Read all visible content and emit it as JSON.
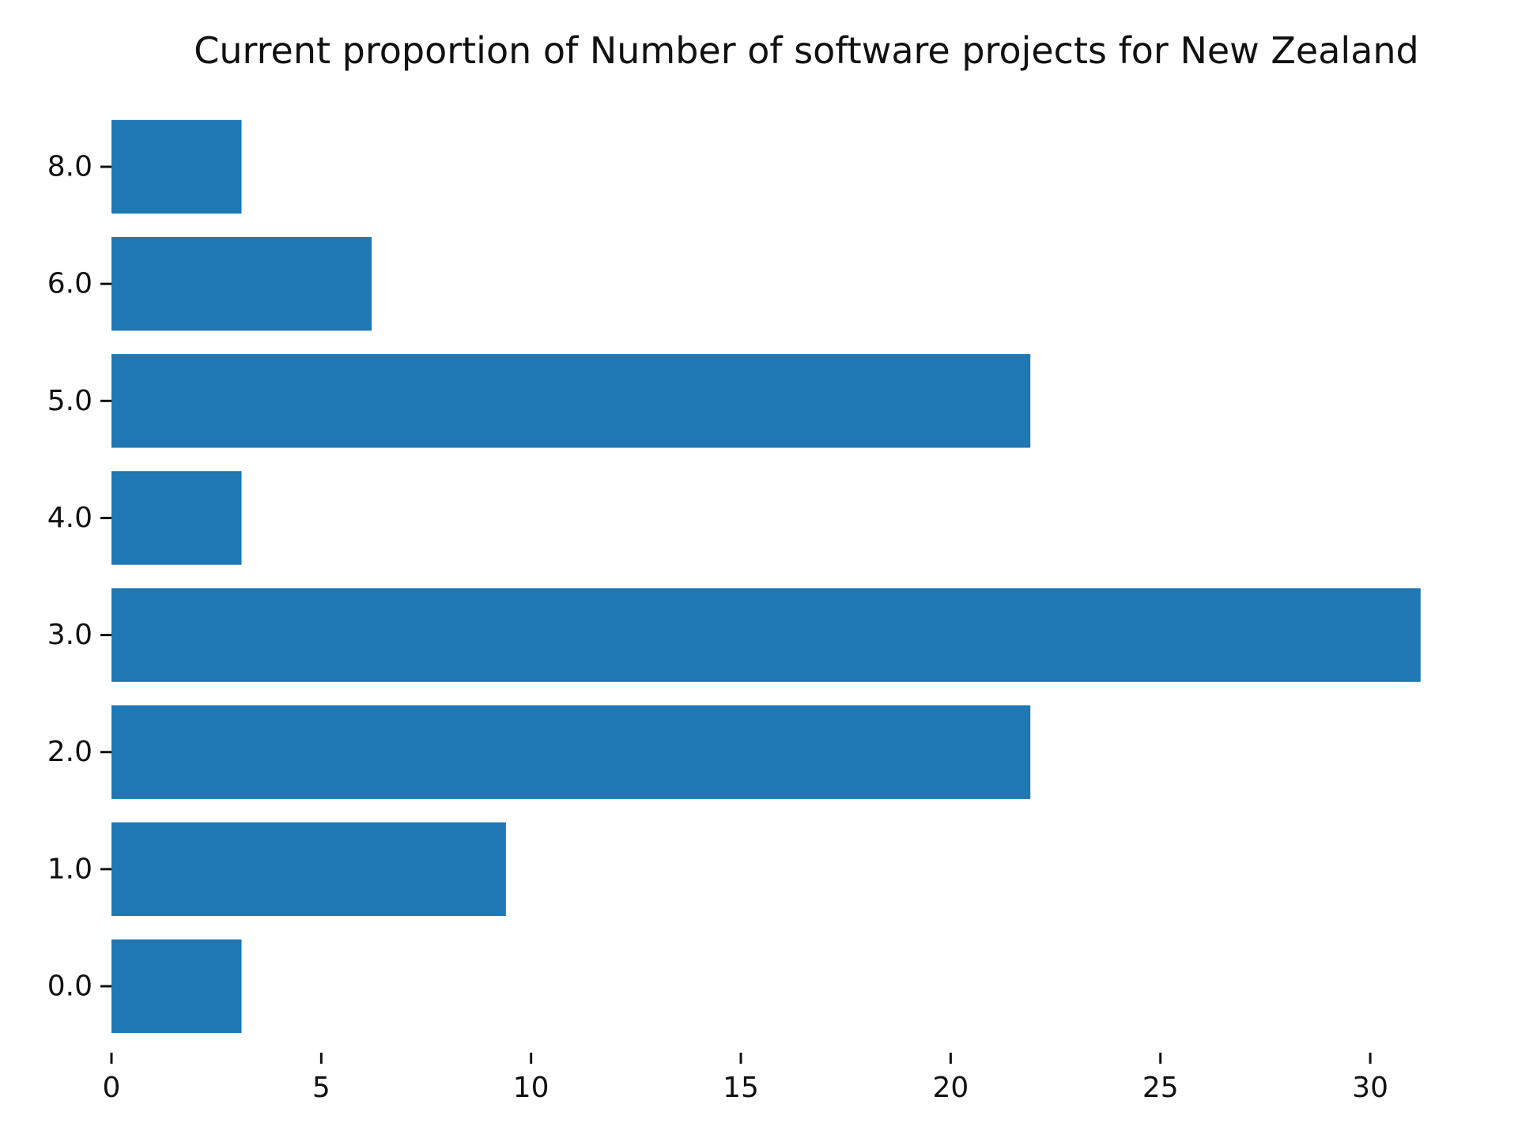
{
  "chart_data": {
    "type": "bar",
    "orientation": "horizontal",
    "title": "Current proportion of Number of software projects for New Zealand",
    "xlabel": "",
    "ylabel": "",
    "categories": [
      "0.0",
      "1.0",
      "2.0",
      "3.0",
      "4.0",
      "5.0",
      "6.0",
      "8.0"
    ],
    "values": [
      3.1,
      9.4,
      21.9,
      31.2,
      3.1,
      21.9,
      6.2,
      3.1
    ],
    "xlim": [
      0,
      31.6
    ],
    "xticks": [
      0,
      5,
      10,
      15,
      20,
      25,
      30
    ],
    "xtick_labels": [
      "0",
      "5",
      "10",
      "15",
      "20",
      "25",
      "30"
    ],
    "grid": false,
    "bar_color": "#1f77b4"
  }
}
